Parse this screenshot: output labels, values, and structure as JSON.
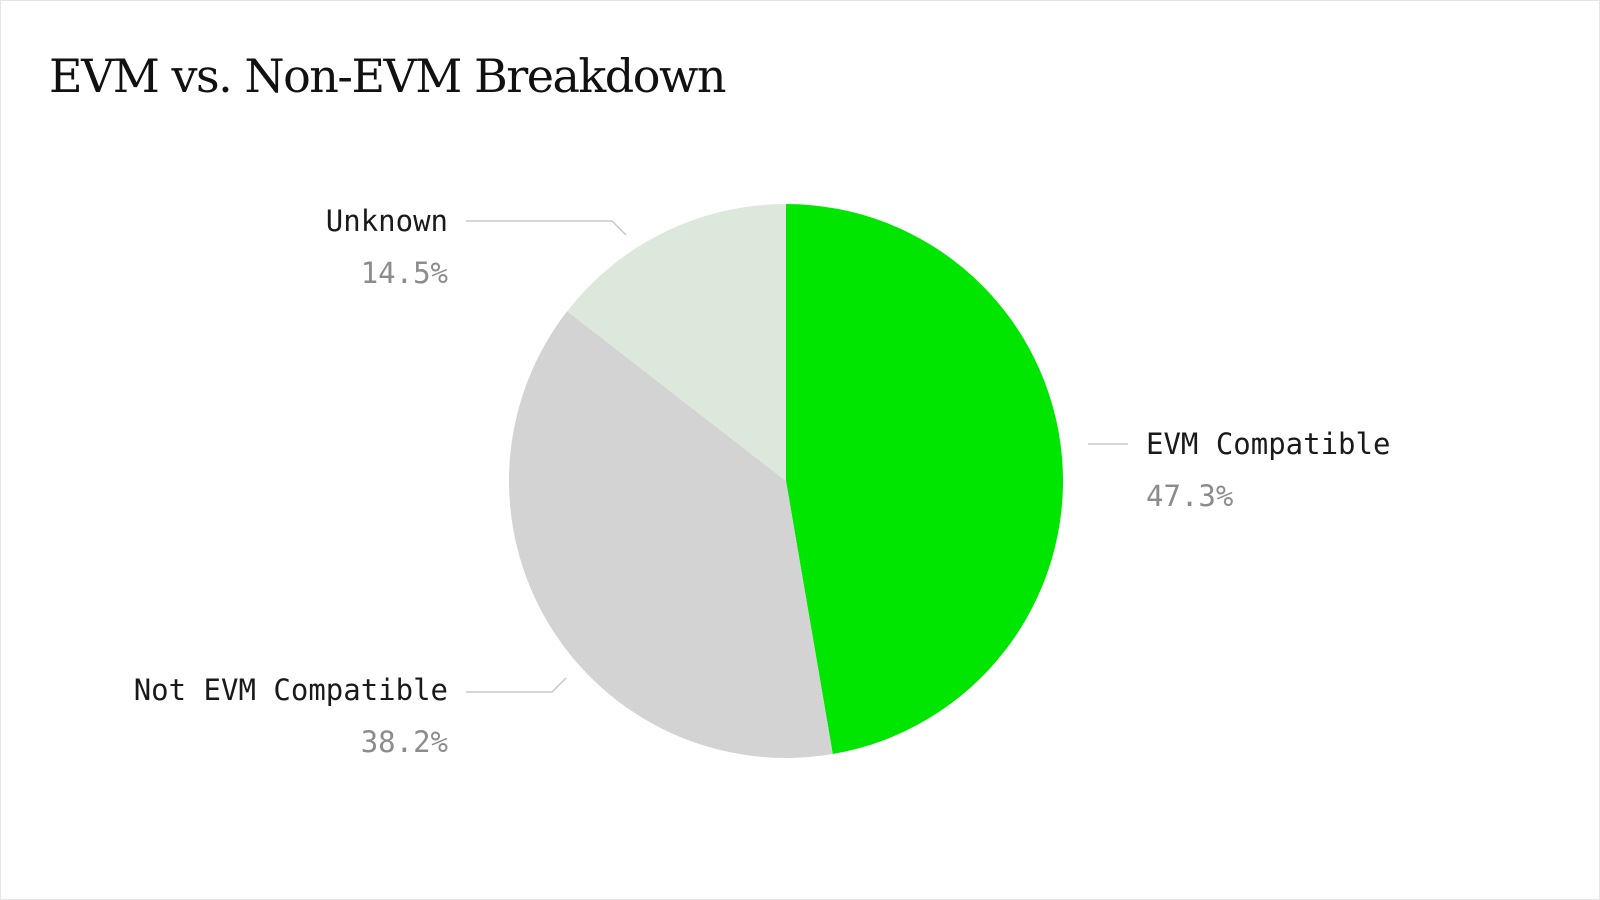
{
  "chart_data": {
    "type": "pie",
    "title": "EVM vs. Non-EVM Breakdown",
    "categories": [
      "EVM Compatible",
      "Not EVM Compatible",
      "Unknown"
    ],
    "values": [
      47.3,
      38.2,
      14.5
    ],
    "value_labels": [
      "47.3%",
      "38.2%",
      "14.5%"
    ],
    "colors": [
      "#00e600",
      "#d3d3d3",
      "#dde8dd"
    ],
    "start_angle": "12 o'clock",
    "direction": "clockwise",
    "legend": "none",
    "labels_with_leader_lines": true
  },
  "colors": {
    "leader_line": "#c8c8c8",
    "label_text": "#1a1a1a",
    "value_text": "#8c8c8c",
    "background": "#ffffff"
  }
}
